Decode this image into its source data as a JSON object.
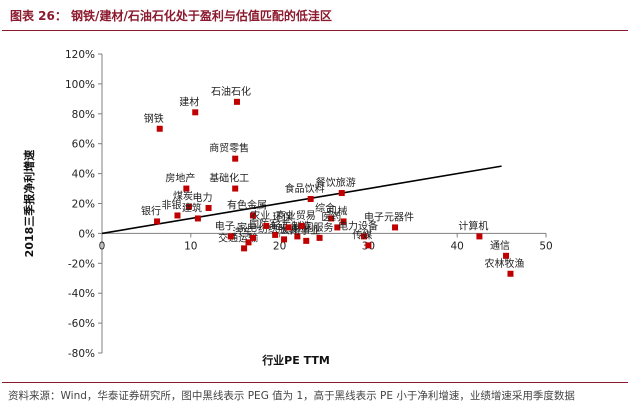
{
  "figure": {
    "title": "图表 26：   钢铁/建材/石油石化处于盈利与估值匹配的低洼区",
    "source_note": "资料来源：Wind，华泰证券研究所，图中黑线表示 PEG 值为 1，高于黑线表示 PE 小于净利增速，业绩增速采用季度数据"
  },
  "chart_data": {
    "type": "scatter",
    "xlabel": "行业PE TTM",
    "ylabel": "2018三季报净利增速",
    "xlim": [
      0,
      50
    ],
    "ylim": [
      -0.8,
      1.2
    ],
    "x_ticks": [
      0,
      10,
      20,
      30,
      40,
      50
    ],
    "y_ticks": [
      1.2,
      1.0,
      0.8,
      0.6,
      0.4,
      0.2,
      0.0,
      -0.2,
      -0.4,
      -0.6,
      -0.8
    ],
    "y_tick_labels": [
      "120%",
      "100%",
      "80%",
      "60%",
      "40%",
      "20%",
      "0%",
      "-20%",
      "-40%",
      "-60%",
      "-80%"
    ],
    "x_tick_labels": [
      "0",
      "10",
      "20",
      "30",
      "40",
      "50"
    ],
    "grid": false,
    "marker_color": "#c00000",
    "line_color": "#000000",
    "reference_line": {
      "x": [
        0,
        45
      ],
      "y": [
        0.0,
        0.45
      ]
    },
    "points": [
      {
        "label": "钢铁",
        "x": 6.5,
        "y": 0.7
      },
      {
        "label": "建材",
        "x": 10.5,
        "y": 0.81
      },
      {
        "label": "石油石化",
        "x": 15.2,
        "y": 0.88
      },
      {
        "label": "商贸零售",
        "x": 15.0,
        "y": 0.5
      },
      {
        "label": "基础化工",
        "x": 15.0,
        "y": 0.3
      },
      {
        "label": "房地产",
        "x": 9.5,
        "y": 0.3
      },
      {
        "label": "煤炭",
        "x": 9.8,
        "y": 0.18
      },
      {
        "label": "电力",
        "x": 12.0,
        "y": 0.17
      },
      {
        "label": "银行",
        "x": 6.2,
        "y": 0.08
      },
      {
        "label": "非银",
        "x": 8.5,
        "y": 0.12
      },
      {
        "label": "建筑",
        "x": 10.8,
        "y": 0.1
      },
      {
        "label": "食品饮料",
        "x": 23.5,
        "y": 0.23
      },
      {
        "label": "有色金属",
        "x": 17.0,
        "y": 0.12
      },
      {
        "label": "餐饮旅游",
        "x": 27.0,
        "y": 0.27
      },
      {
        "label": "机械",
        "x": 27.2,
        "y": 0.08
      },
      {
        "label": "电子元器件",
        "x": 33.0,
        "y": 0.04
      },
      {
        "label": "计算机",
        "x": 42.5,
        "y": -0.02
      },
      {
        "label": "通信",
        "x": 45.5,
        "y": -0.15
      },
      {
        "label": "农林牧渔",
        "x": 46.0,
        "y": -0.27
      },
      {
        "label": "综合",
        "x": 25.8,
        "y": 0.1
      },
      {
        "label": "医药",
        "x": 26.5,
        "y": 0.04
      },
      {
        "label": "电力设备",
        "x": 29.5,
        "y": -0.02
      },
      {
        "label": "传媒",
        "x": 30.0,
        "y": -0.08
      },
      {
        "label": "交通运输",
        "x": 16.0,
        "y": -0.1
      },
      {
        "label": "汽车",
        "x": 16.5,
        "y": -0.06
      },
      {
        "label": "电子",
        "x": 14.5,
        "y": -0.02
      },
      {
        "label": "国防军工",
        "x": 19.5,
        "y": -0.01
      },
      {
        "label": "家电",
        "x": 17.0,
        "y": -0.03
      },
      {
        "label": "纺织服装",
        "x": 20.5,
        "y": -0.04
      },
      {
        "label": "轻工制造",
        "x": 22.0,
        "y": -0.02
      },
      {
        "label": "公用事业",
        "x": 23.0,
        "y": -0.05
      },
      {
        "label": "休闲服务",
        "x": 24.5,
        "y": -0.03
      },
      {
        "label": "商业贸易",
        "x": 22.5,
        "y": 0.05
      },
      {
        "label": "农业",
        "x": 18.5,
        "y": 0.05
      },
      {
        "label": "环保",
        "x": 21.0,
        "y": 0.04
      }
    ]
  }
}
